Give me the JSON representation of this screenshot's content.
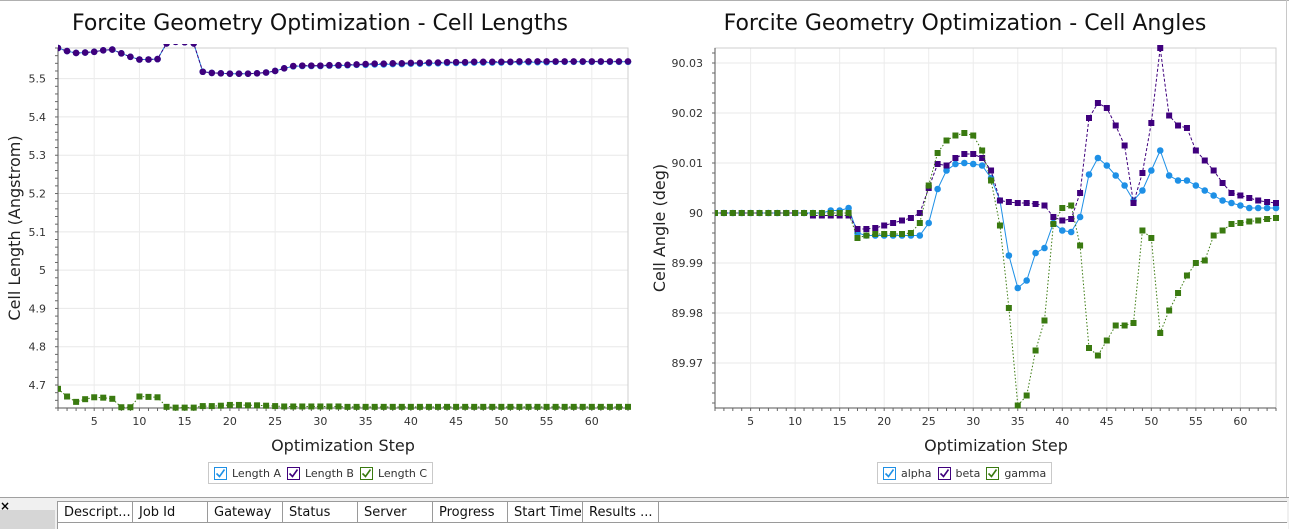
{
  "chart_data": [
    {
      "type": "line",
      "title": "Forcite Geometry Optimization - Cell Lengths",
      "xlabel": "Optimization Step",
      "ylabel": "Cell Length (Angstrom)",
      "xlim": [
        1,
        64
      ],
      "ylim": [
        4.64,
        5.58
      ],
      "xticks": [
        5,
        10,
        15,
        20,
        25,
        30,
        35,
        40,
        45,
        50,
        55,
        60
      ],
      "yticks": [
        4.7,
        4.8,
        4.9,
        5,
        5.1,
        5.2,
        5.3,
        5.4,
        5.5
      ],
      "ytick_labels": [
        "4.7",
        "4.8",
        "4.9",
        "5",
        "5.1",
        "5.2",
        "5.3",
        "5.4",
        "5.5"
      ],
      "grid": true,
      "legend_position": "bottom",
      "series": [
        {
          "name": "Length A",
          "color": "#1e90e6",
          "marker": "circle",
          "line": "solid",
          "x": [
            1,
            2,
            3,
            4,
            5,
            6,
            7,
            8,
            9,
            10,
            11,
            12,
            13,
            14,
            15,
            16,
            17,
            18,
            19,
            20,
            21,
            22,
            23,
            24,
            25,
            26,
            27,
            28,
            29,
            30,
            31,
            32,
            33,
            34,
            35,
            36,
            37,
            38,
            39,
            40,
            41,
            42,
            43,
            44,
            45,
            46,
            47,
            48,
            49,
            50,
            51,
            52,
            53,
            54,
            55,
            56,
            57,
            58,
            59,
            60,
            61,
            62,
            63,
            64
          ],
          "y": [
            5.58,
            5.572,
            5.567,
            5.568,
            5.57,
            5.574,
            5.576,
            5.566,
            5.557,
            5.55,
            5.55,
            5.551,
            5.592,
            5.596,
            5.595,
            5.592,
            5.518,
            5.515,
            5.514,
            5.513,
            5.513,
            5.513,
            5.514,
            5.516,
            5.52,
            5.527,
            5.532,
            5.533,
            5.533,
            5.533,
            5.534,
            5.534,
            5.535,
            5.536,
            5.536,
            5.537,
            5.537,
            5.538,
            5.538,
            5.539,
            5.539,
            5.54,
            5.54,
            5.541,
            5.541,
            5.541,
            5.542,
            5.542,
            5.542,
            5.542,
            5.543,
            5.543,
            5.543,
            5.543,
            5.543,
            5.544,
            5.544,
            5.544,
            5.544,
            5.544,
            5.544,
            5.544,
            5.544,
            5.544
          ]
        },
        {
          "name": "Length B",
          "color": "#3f007d",
          "marker": "circle",
          "line": "dashed",
          "x": [
            1,
            2,
            3,
            4,
            5,
            6,
            7,
            8,
            9,
            10,
            11,
            12,
            13,
            14,
            15,
            16,
            17,
            18,
            19,
            20,
            21,
            22,
            23,
            24,
            25,
            26,
            27,
            28,
            29,
            30,
            31,
            32,
            33,
            34,
            35,
            36,
            37,
            38,
            39,
            40,
            41,
            42,
            43,
            44,
            45,
            46,
            47,
            48,
            49,
            50,
            51,
            52,
            53,
            54,
            55,
            56,
            57,
            58,
            59,
            60,
            61,
            62,
            63,
            64
          ],
          "y": [
            5.58,
            5.572,
            5.567,
            5.568,
            5.57,
            5.574,
            5.576,
            5.566,
            5.557,
            5.55,
            5.55,
            5.551,
            5.592,
            5.596,
            5.595,
            5.592,
            5.518,
            5.515,
            5.514,
            5.513,
            5.513,
            5.513,
            5.514,
            5.516,
            5.52,
            5.527,
            5.533,
            5.534,
            5.534,
            5.534,
            5.535,
            5.535,
            5.536,
            5.537,
            5.538,
            5.539,
            5.539,
            5.54,
            5.54,
            5.541,
            5.541,
            5.542,
            5.542,
            5.543,
            5.543,
            5.543,
            5.544,
            5.544,
            5.544,
            5.544,
            5.544,
            5.545,
            5.545,
            5.545,
            5.545,
            5.545,
            5.545,
            5.545,
            5.545,
            5.545,
            5.545,
            5.545,
            5.545,
            5.545
          ]
        },
        {
          "name": "Length C",
          "color": "#3a7a10",
          "marker": "square",
          "line": "dotted",
          "x": [
            1,
            2,
            3,
            4,
            5,
            6,
            7,
            8,
            9,
            10,
            11,
            12,
            13,
            14,
            15,
            16,
            17,
            18,
            19,
            20,
            21,
            22,
            23,
            24,
            25,
            26,
            27,
            28,
            29,
            30,
            31,
            32,
            33,
            34,
            35,
            36,
            37,
            38,
            39,
            40,
            41,
            42,
            43,
            44,
            45,
            46,
            47,
            48,
            49,
            50,
            51,
            52,
            53,
            54,
            55,
            56,
            57,
            58,
            59,
            60,
            61,
            62,
            63,
            64
          ],
          "y": [
            4.69,
            4.67,
            4.656,
            4.663,
            4.668,
            4.667,
            4.664,
            4.642,
            4.642,
            4.67,
            4.669,
            4.668,
            4.643,
            4.641,
            4.641,
            4.641,
            4.645,
            4.645,
            4.646,
            4.648,
            4.648,
            4.647,
            4.647,
            4.646,
            4.645,
            4.644,
            4.644,
            4.644,
            4.644,
            4.644,
            4.644,
            4.644,
            4.643,
            4.643,
            4.643,
            4.643,
            4.643,
            4.643,
            4.643,
            4.643,
            4.643,
            4.643,
            4.643,
            4.643,
            4.643,
            4.643,
            4.643,
            4.643,
            4.643,
            4.643,
            4.643,
            4.643,
            4.643,
            4.643,
            4.643,
            4.643,
            4.643,
            4.643,
            4.643,
            4.643,
            4.643,
            4.643,
            4.643,
            4.643
          ]
        }
      ]
    },
    {
      "type": "line",
      "title": "Forcite Geometry Optimization - Cell Angles",
      "xlabel": "Optimization Step",
      "ylabel": "Cell Angle (deg)",
      "xlim": [
        1,
        64
      ],
      "ylim": [
        89.961,
        90.033
      ],
      "xticks": [
        5,
        10,
        15,
        20,
        25,
        30,
        35,
        40,
        45,
        50,
        55,
        60
      ],
      "yticks": [
        89.97,
        89.98,
        89.99,
        90,
        90.01,
        90.02,
        90.03
      ],
      "ytick_labels": [
        "89.97",
        "89.98",
        "89.99",
        "90",
        "90.01",
        "90.02",
        "90.03"
      ],
      "grid": true,
      "legend_position": "bottom",
      "series": [
        {
          "name": "alpha",
          "color": "#1e90e6",
          "marker": "circle",
          "line": "solid",
          "x": [
            1,
            2,
            3,
            4,
            5,
            6,
            7,
            8,
            9,
            10,
            11,
            12,
            13,
            14,
            15,
            16,
            17,
            18,
            19,
            20,
            21,
            22,
            23,
            24,
            25,
            26,
            27,
            28,
            29,
            30,
            31,
            32,
            33,
            34,
            35,
            36,
            37,
            38,
            39,
            40,
            41,
            42,
            43,
            44,
            45,
            46,
            47,
            48,
            49,
            50,
            51,
            52,
            53,
            54,
            55,
            56,
            57,
            58,
            59,
            60,
            61,
            62,
            63,
            64
          ],
          "y": [
            90,
            90,
            90,
            90,
            90,
            90,
            90,
            90,
            90,
            90,
            90,
            90,
            90,
            90.0005,
            90.0005,
            90.001,
            89.996,
            89.9955,
            89.9955,
            89.9955,
            89.9955,
            89.9955,
            89.9955,
            89.9955,
            89.998,
            90.0048,
            90.0085,
            90.0098,
            90.01,
            90.0098,
            90.0095,
            90.007,
            90.0025,
            89.9915,
            89.985,
            89.9865,
            89.992,
            89.993,
            89.998,
            89.9965,
            89.9962,
            89.9992,
            90.0077,
            90.011,
            90.0095,
            90.0075,
            90.0055,
            90.0025,
            90.0045,
            90.0085,
            90.0125,
            90.0075,
            90.0065,
            90.0065,
            90.0055,
            90.0045,
            90.0035,
            90.0025,
            90.002,
            90.0015,
            90.001,
            90.001,
            90.001,
            90.001
          ]
        },
        {
          "name": "beta",
          "color": "#3f007d",
          "marker": "square",
          "line": "dashed",
          "x": [
            1,
            2,
            3,
            4,
            5,
            6,
            7,
            8,
            9,
            10,
            11,
            12,
            13,
            14,
            15,
            16,
            17,
            18,
            19,
            20,
            21,
            22,
            23,
            24,
            25,
            26,
            27,
            28,
            29,
            30,
            31,
            32,
            33,
            34,
            35,
            36,
            37,
            38,
            39,
            40,
            41,
            42,
            43,
            44,
            45,
            46,
            47,
            48,
            49,
            50,
            51,
            52,
            53,
            54,
            55,
            56,
            57,
            58,
            59,
            60,
            61,
            62,
            63,
            64
          ],
          "y": [
            90,
            90,
            90,
            90,
            90,
            90,
            90,
            90,
            90,
            90,
            90,
            89.9995,
            89.9995,
            89.9995,
            89.9995,
            89.9995,
            89.9968,
            89.9968,
            89.997,
            89.9975,
            89.998,
            89.9985,
            89.999,
            90,
            90.005,
            90.0098,
            90.0095,
            90.011,
            90.0118,
            90.0118,
            90.011,
            90.0085,
            90.0025,
            90.0022,
            90.002,
            90.002,
            90.0018,
            90.0015,
            89.9992,
            89.9985,
            89.9988,
            90.004,
            90.019,
            90.022,
            90.021,
            90.0175,
            90.0135,
            90.002,
            90.008,
            90.018,
            90.033,
            90.0195,
            90.0175,
            90.017,
            90.0125,
            90.0105,
            90.0085,
            90.006,
            90.004,
            90.0035,
            90.003,
            90.0025,
            90.0022,
            90.002
          ]
        },
        {
          "name": "gamma",
          "color": "#3a7a10",
          "marker": "square",
          "line": "dotted",
          "x": [
            1,
            2,
            3,
            4,
            5,
            6,
            7,
            8,
            9,
            10,
            11,
            12,
            13,
            14,
            15,
            16,
            17,
            18,
            19,
            20,
            21,
            22,
            23,
            24,
            25,
            26,
            27,
            28,
            29,
            30,
            31,
            32,
            33,
            34,
            35,
            36,
            37,
            38,
            39,
            40,
            41,
            42,
            43,
            44,
            45,
            46,
            47,
            48,
            49,
            50,
            51,
            52,
            53,
            54,
            55,
            56,
            57,
            58,
            59,
            60,
            61,
            62,
            63,
            64
          ],
          "y": [
            90,
            90,
            90,
            90,
            90,
            90,
            90,
            90,
            90,
            90,
            90,
            90,
            90,
            90,
            90,
            90,
            89.995,
            89.9955,
            89.9958,
            89.9958,
            89.9958,
            89.9958,
            89.996,
            89.998,
            90.0055,
            90.012,
            90.0145,
            90.0155,
            90.016,
            90.0155,
            90.0125,
            90.0065,
            89.9975,
            89.981,
            89.9615,
            89.9635,
            89.9725,
            89.9785,
            89.9978,
            90.001,
            90.0015,
            89.9935,
            89.973,
            89.9715,
            89.9745,
            89.9775,
            89.9775,
            89.978,
            89.9965,
            89.995,
            89.976,
            89.9805,
            89.984,
            89.9875,
            89.99,
            89.9905,
            89.9955,
            89.9965,
            89.9978,
            89.998,
            89.9983,
            89.9985,
            89.9988,
            89.999
          ]
        }
      ]
    }
  ],
  "jobs_panel": {
    "close_glyph": "×",
    "columns": [
      "Descript...",
      "Job Id",
      "Gateway",
      "Status",
      "Server",
      "Progress",
      "Start Time",
      "Results ..."
    ]
  }
}
